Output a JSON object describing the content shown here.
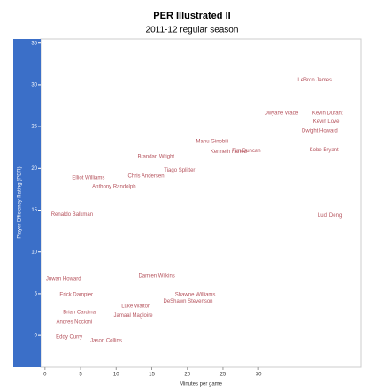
{
  "chart_data": {
    "type": "scatter",
    "title": "PER Illustrated II",
    "subtitle": "2011-12 regular season",
    "xlabel": "Minutes per game",
    "ylabel": "Player Efficiency Rating (PER)",
    "color": "#b5525c",
    "axis_color": "#3b6fc8",
    "labels": [
      "LeBron James",
      "Dwyane Wade",
      "Kevin Durant",
      "Kevin Love",
      "Dwight Howard",
      "Kobe Bryant",
      "Manu Ginobili",
      "Kenneth Faried",
      "Tim Duncan",
      "Brandan Wright",
      "Tiago Splitter",
      "Chris Andersen",
      "Anthony Randolph",
      "Elliot Williams",
      "Renaldo Balkman",
      "Luol Deng",
      "Juwan Howard",
      "Erick Dampier",
      "Shawne Williams",
      "Damien Wilkins",
      "DeShawn Stevenson",
      "Jamaal Magloire",
      "Luke Walton",
      "Brian Cardinal",
      "Andres Nocioni",
      "Eddy Curry",
      "Jason Collins"
    ],
    "x": [
      37.9,
      33.2,
      39.7,
      39.5,
      38.6,
      39.2,
      23.5,
      25.8,
      28.3,
      15.6,
      18.9,
      14.2,
      9.7,
      6.1,
      3.8,
      40.0,
      2.6,
      4.4,
      21.1,
      15.7,
      20.1,
      12.4,
      12.8,
      4.9,
      4.1,
      3.4,
      8.6
    ],
    "values": [
      30.6,
      26.6,
      26.6,
      25.6,
      24.5,
      22.2,
      23.2,
      22.0,
      22.1,
      21.4,
      19.8,
      19.1,
      17.8,
      18.9,
      14.5,
      14.4,
      6.8,
      4.9,
      4.9,
      7.1,
      4.1,
      2.4,
      3.5,
      2.8,
      1.6,
      -0.2,
      -0.6
    ],
    "xlim": [
      -0.6,
      44.4
    ],
    "xticks": [
      0,
      5,
      10,
      15,
      20,
      25,
      30
    ],
    "ylim": [
      -3.8,
      35.5
    ],
    "yticks": [
      0,
      5,
      10,
      15,
      20,
      25,
      30,
      35
    ]
  }
}
